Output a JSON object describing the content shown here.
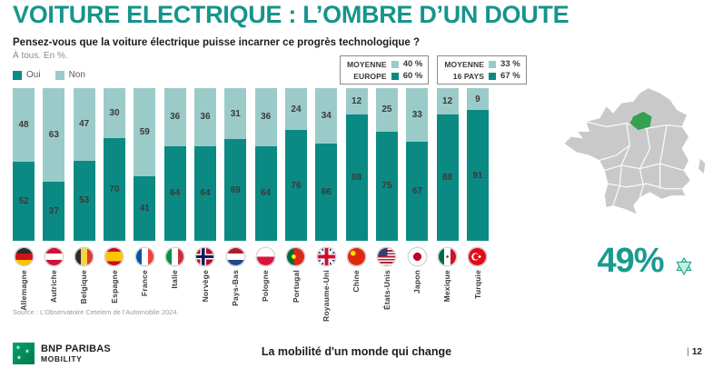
{
  "title": "VOITURE ELECTRIQUE : L’OMBRE D’UN DOUTE",
  "question": "Pensez-vous que la voiture électrique puisse incarner ce progrès technologique ?",
  "subtitle": "À tous. En %.",
  "legend": {
    "oui": "Oui",
    "non": "Non"
  },
  "colors": {
    "oui": "#0b8a83",
    "non": "#9bcbc8",
    "title_teal": "#17948b",
    "region_green": "#33a14f",
    "map_gray": "#c9c9c9",
    "star_fill": "#c3efdc",
    "star_stroke": "#1a9a90"
  },
  "averages": [
    {
      "rows": [
        {
          "label": "MOYENNE",
          "value": "40 %",
          "color": "non"
        },
        {
          "label": "EUROPE",
          "value": "60 %",
          "color": "oui"
        }
      ]
    },
    {
      "rows": [
        {
          "label": "MOYENNE",
          "value": "33 %",
          "color": "non"
        },
        {
          "label": "16 PAYS",
          "value": "67 %",
          "color": "oui"
        }
      ]
    }
  ],
  "chart_data": {
    "type": "bar",
    "stacked": true,
    "categories": [
      "Allemagne",
      "Autriche",
      "Belgique",
      "Espagne",
      "France",
      "Italie",
      "Norvège",
      "Pays-Bas",
      "Pologne",
      "Portugal",
      "Royaume-Uni",
      "Chine",
      "États-Unis",
      "Japon",
      "Mexique",
      "Turquie"
    ],
    "series": [
      {
        "name": "Oui",
        "values": [
          52,
          37,
          53,
          70,
          41,
          64,
          64,
          69,
          64,
          76,
          66,
          88,
          75,
          67,
          88,
          91
        ]
      },
      {
        "name": "Non",
        "values": [
          48,
          63,
          47,
          30,
          59,
          36,
          36,
          31,
          36,
          24,
          34,
          12,
          25,
          33,
          12,
          9
        ]
      }
    ],
    "ylim": [
      0,
      100
    ],
    "legend_position": "top-left",
    "grid": false
  },
  "flags_css": [
    "linear-gradient(180deg,#2b2b2b 33%,#d01317 33% 66%,#f8c300 66%)",
    "linear-gradient(180deg,#d0103a 33%,#fff 33% 66%,#d0103a 66%)",
    "linear-gradient(90deg,#2b2b2b 33%,#f8d147 33% 66%,#e03c31 66%)",
    "linear-gradient(180deg,#c60b1e 25%,#ffc400 25% 75%,#c60b1e 75%)",
    "linear-gradient(90deg,#0055a4 33%,#fff 33% 66%,#ef4135 66%)",
    "linear-gradient(90deg,#009246 33%,#fff 33% 66%,#ce2b37 66%)",
    "linear-gradient(90deg,transparent 34%,#00205b 34% 50%,transparent 50%),linear-gradient(180deg,transparent 42%,#00205b 42% 58%,transparent 58%),linear-gradient(90deg,transparent 27%,#fff 27% 57%,transparent 57%),linear-gradient(180deg,transparent 35%,#fff 35% 65%,transparent 65%),#ba0c2f",
    "linear-gradient(180deg,#ae1c28 33%,#fff 33% 66%,#21468b 66%)",
    "linear-gradient(180deg,#fff 50%,#dc143c 50%)",
    "radial-gradient(circle at 40% 50%,#ffe900 0 14%,transparent 15%),linear-gradient(90deg,#046a38 40%,#da291c 40%)",
    "linear-gradient(180deg,transparent 41%,#c8102e 41% 59%,transparent 59%),linear-gradient(90deg,transparent 41%,#c8102e 41% 59%,transparent 59%),linear-gradient(180deg,transparent 33%,#fff 33% 67%,transparent 67%),linear-gradient(90deg,transparent 33%,#fff 33% 67%,transparent 67%),linear-gradient(45deg,transparent 45%,#fff 45% 55%,transparent 55%),linear-gradient(135deg,transparent 45%,#fff 45% 55%,transparent 55%),#012169",
    "radial-gradient(circle at 32% 32%,#ffde00 0 13%,transparent 14%),#de2910",
    "linear-gradient(#3c3b6e,#3c3b6e) left top/55% 48% no-repeat,repeating-linear-gradient(180deg,#b22234 0 7.7%,#fff 7.7% 15.4%)",
    "radial-gradient(circle,#bc002d 0 30%,transparent 31%),#fff",
    "radial-gradient(circle at 50% 50%,#6b5b3e 0 9%,transparent 10%),linear-gradient(90deg,#006847 33%,#fff 33% 66%,#ce1126 66%)",
    "radial-gradient(circle at 62% 50%,#fff 0 8%,transparent 9%),radial-gradient(circle at 45% 50%,#e30a17 0 20%,transparent 21%),radial-gradient(circle at 40% 50%,#fff 0 25%,transparent 26%),#e30a17"
  ],
  "source": "Source : L’Observatoire Cetelem de l’Automobile 2024.",
  "map": {
    "highlight_value": "49%"
  },
  "footer": {
    "logo_line1": "BNP PARIBAS",
    "logo_line2": "MOBILITY",
    "tagline": "La mobilité d'un monde qui change",
    "page_separator": "|",
    "page_number": "12"
  }
}
